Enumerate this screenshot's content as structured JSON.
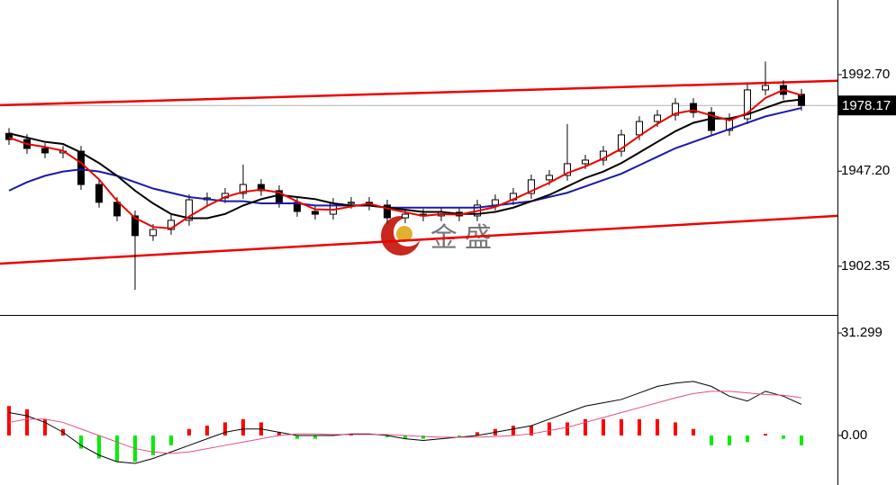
{
  "chart_data": [
    {
      "type": "candlestick",
      "watermark": "金 盛",
      "open": [
        1965.0,
        1962.1,
        1957.9,
        1955.8,
        1956.6,
        1940.9,
        1932.5,
        1926.1,
        1916.8,
        1919.7,
        1924.0,
        1933.7,
        1934.6,
        1936.7,
        1940.9,
        1938.0,
        1932.5,
        1928.2,
        1926.9,
        1932.0,
        1932.5,
        1931.2,
        1925.2,
        1926.9,
        1926.1,
        1927.8,
        1926.1,
        1931.2,
        1933.7,
        1936.7,
        1943.1,
        1945.2,
        1950.7,
        1952.4,
        1956.6,
        1964.3,
        1970.6,
        1973.6,
        1979.1,
        1974.9,
        1966.4,
        1971.9,
        1985.5,
        1987.6,
        1983.4
      ],
      "high": [
        1967.5,
        1964.6,
        1960.4,
        1959.1,
        1959.1,
        1943.4,
        1935.0,
        1928.6,
        1922.2,
        1926.5,
        1936.2,
        1937.1,
        1939.2,
        1950.3,
        1943.4,
        1940.5,
        1935.0,
        1930.7,
        1934.5,
        1935.0,
        1935.0,
        1933.7,
        1929.4,
        1929.4,
        1930.3,
        1930.3,
        1933.7,
        1936.2,
        1939.2,
        1945.6,
        1947.7,
        1969.4,
        1954.9,
        1959.1,
        1966.8,
        1973.1,
        1976.1,
        1981.6,
        1981.6,
        1977.4,
        1974.4,
        1988.0,
        1998.9,
        1990.1,
        1985.9
      ],
      "low": [
        1959.6,
        1955.4,
        1953.3,
        1953.3,
        1938.4,
        1930.0,
        1923.6,
        1891.3,
        1914.3,
        1917.2,
        1921.5,
        1931.2,
        1932.1,
        1934.2,
        1935.5,
        1930.0,
        1925.7,
        1924.4,
        1924.4,
        1929.5,
        1928.7,
        1922.7,
        1922.7,
        1923.6,
        1923.6,
        1923.6,
        1923.6,
        1928.7,
        1931.2,
        1934.2,
        1940.6,
        1942.7,
        1948.2,
        1949.9,
        1954.1,
        1961.8,
        1968.1,
        1971.1,
        1972.4,
        1963.9,
        1963.9,
        1969.4,
        1983.0,
        1980.9,
        1975.7
      ],
      "close": [
        1962.1,
        1957.9,
        1955.8,
        1956.6,
        1940.9,
        1932.5,
        1926.1,
        1916.8,
        1919.7,
        1924.0,
        1933.7,
        1934.6,
        1936.7,
        1940.9,
        1938.0,
        1932.5,
        1928.2,
        1926.9,
        1932.0,
        1932.5,
        1931.2,
        1925.2,
        1926.9,
        1926.1,
        1927.8,
        1926.1,
        1931.2,
        1933.7,
        1936.7,
        1943.1,
        1945.2,
        1950.7,
        1952.4,
        1956.6,
        1964.3,
        1970.6,
        1973.6,
        1979.1,
        1974.9,
        1966.4,
        1971.9,
        1985.5,
        1987.6,
        1983.4,
        1978.17
      ],
      "up_color": "#ffffff",
      "down_color": "#000000",
      "series": [
        {
          "color": "#1a1aa8",
          "values": [
            1938,
            1942,
            1945,
            1947,
            1948,
            1947,
            1945,
            1942,
            1939,
            1937,
            1935,
            1934,
            1933,
            1933,
            1932,
            1932,
            1932,
            1931,
            1931,
            1931,
            1931,
            1930,
            1930,
            1930,
            1930,
            1930,
            1930,
            1931,
            1932,
            1933,
            1935,
            1937,
            1940,
            1943,
            1946,
            1950,
            1954,
            1958,
            1961,
            1964,
            1967,
            1970,
            1973,
            1975,
            1977
          ]
        },
        {
          "color": "#000000",
          "values": [
            1965,
            1963,
            1961,
            1960,
            1956,
            1951,
            1945,
            1938,
            1932,
            1927,
            1925,
            1925,
            1927,
            1931,
            1934,
            1936,
            1935,
            1934,
            1932,
            1931,
            1931,
            1930,
            1929,
            1928,
            1928,
            1927,
            1927,
            1928,
            1930,
            1933,
            1936,
            1940,
            1944,
            1947,
            1951,
            1956,
            1961,
            1966,
            1970,
            1972,
            1972,
            1974,
            1977,
            1980,
            1981
          ]
        },
        {
          "color": "#ee0000",
          "values": [
            1963,
            1960,
            1958.6,
            1956.8,
            1951.1,
            1943.3,
            1933.2,
            1925.1,
            1920.9,
            1920.2,
            1925.8,
            1930.8,
            1935.0,
            1937.4,
            1938.5,
            1937.1,
            1932.9,
            1929.2,
            1929.0,
            1930.5,
            1931.9,
            1929.6,
            1927.8,
            1926.1,
            1926.9,
            1926.7,
            1928.4,
            1930.3,
            1933.9,
            1937.8,
            1941.7,
            1946.3,
            1949.4,
            1953.2,
            1957.8,
            1963.8,
            1969.5,
            1974.4,
            1975.9,
            1973.5,
            1971.1,
            1974.6,
            1981.7,
            1985.5,
            1983.0
          ]
        }
      ],
      "channel": [
        {
          "color": "#ee0000",
          "values": [
            1978.3,
            1989.8
          ]
        },
        {
          "color": "#ee0000",
          "values": [
            1903.6,
            1926.1
          ]
        }
      ],
      "current_price": 1978.17,
      "ylim": [
        1879.4,
        2027.9
      ],
      "yticks": [
        1902.35,
        {
          "value": 1947.2,
          "label": "1947.20"
        },
        {
          "value": 1992.7,
          "label": "1992.70"
        }
      ]
    },
    {
      "type": "macd",
      "histogram": {
        "up_color": "#ff0000",
        "down_color": "#00ee00",
        "values": [
          9,
          8,
          5,
          2,
          -4,
          -7,
          -8,
          -8,
          -6,
          -3,
          2,
          3,
          4,
          5,
          4,
          1,
          -1,
          -1,
          0,
          0.5,
          0,
          -0.5,
          -1,
          -1,
          0,
          -0.5,
          1,
          2,
          3,
          3,
          4,
          4,
          5,
          5,
          5,
          5,
          5,
          4,
          2,
          -3,
          -3,
          -2,
          0.5,
          -1,
          -3
        ]
      },
      "series": [
        {
          "color": "#000000",
          "values": [
            7,
            6,
            4,
            1,
            -3,
            -6,
            -8,
            -8.5,
            -7,
            -5,
            -3,
            -1,
            1,
            2,
            2,
            1,
            0,
            0,
            0,
            0.5,
            0.5,
            0,
            -1,
            -1.5,
            -1,
            -0.5,
            0,
            1,
            2,
            3,
            5,
            7,
            9,
            10,
            11,
            13,
            15,
            16,
            16.5,
            15,
            12,
            10.5,
            13.5,
            12,
            9.5
          ]
        },
        {
          "color": "#e0508a",
          "values": [
            4,
            5,
            5,
            4,
            2,
            0,
            -2,
            -4,
            -5,
            -5.5,
            -5,
            -4,
            -3,
            -2,
            -1,
            0,
            0.5,
            0.5,
            0.3,
            0.3,
            0.3,
            0.3,
            0,
            -0.3,
            -0.5,
            -0.5,
            -0.5,
            -0.3,
            0,
            0.5,
            1.5,
            2.5,
            4,
            5.5,
            7,
            8.5,
            10,
            11.5,
            12.8,
            13.5,
            13.5,
            13,
            12.5,
            12.3,
            11.5
          ]
        }
      ],
      "ylim": [
        -15.1,
        36.25
      ],
      "yticks": [
        {
          "value": 0,
          "label": "0.00"
        },
        31.299
      ]
    }
  ]
}
